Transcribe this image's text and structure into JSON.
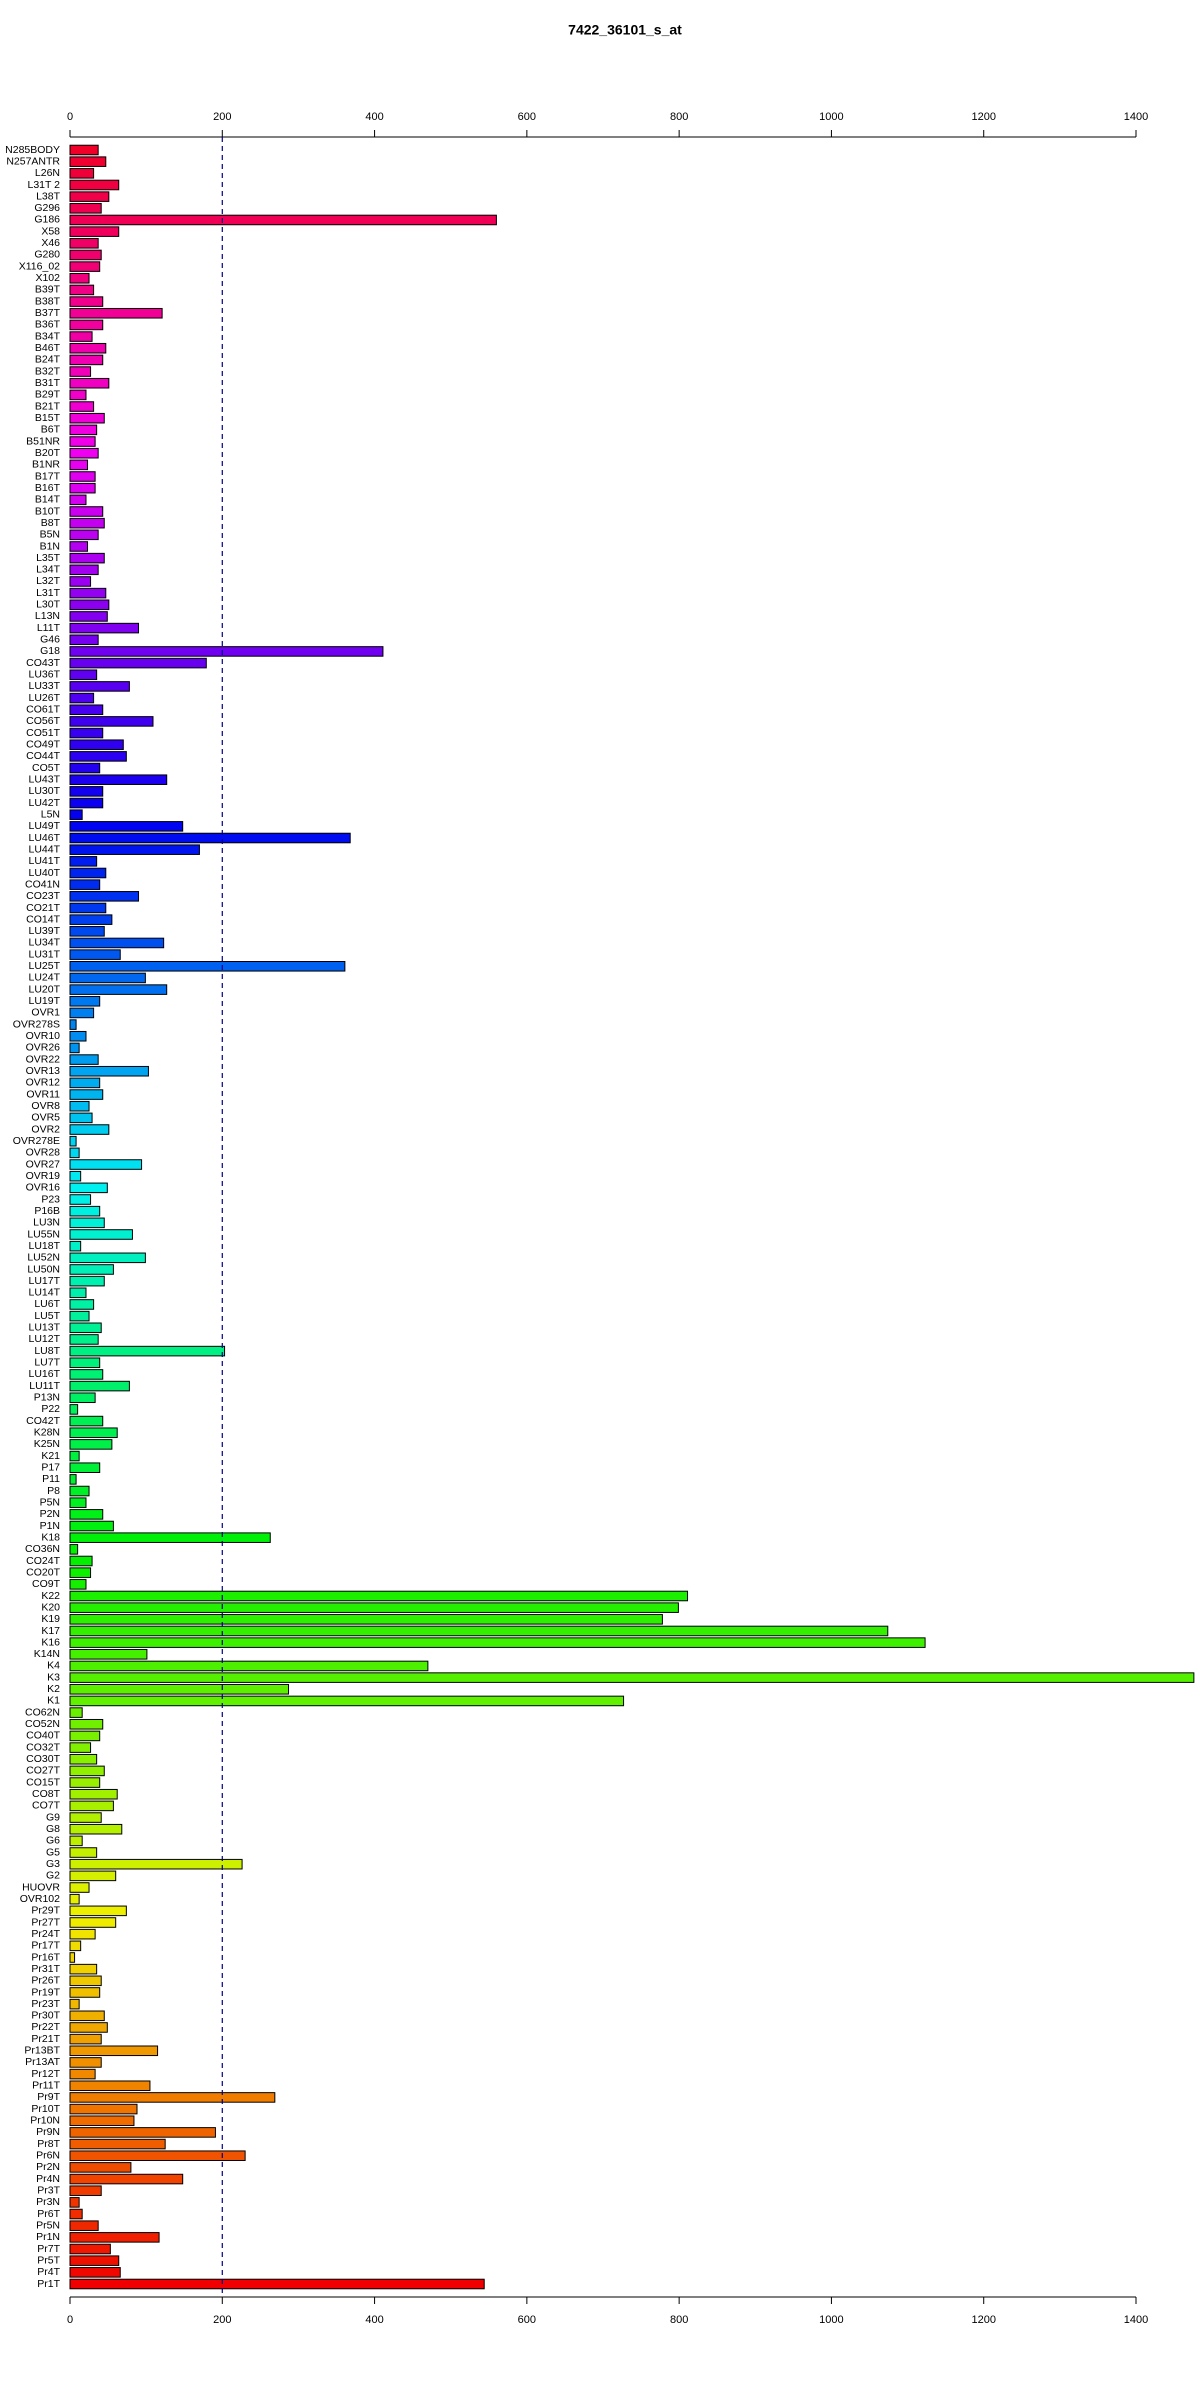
{
  "chart_data": {
    "type": "barh",
    "title": "7422_36101_s_at",
    "categories": [
      "N285BODY",
      "N257ANTR",
      "L26N",
      "L31T 2",
      "L38T",
      "G296",
      "G186",
      "X58",
      "X46",
      "G280",
      "X116_02",
      "X102",
      "B39T",
      "B38T",
      "B37T",
      "B36T",
      "B34T",
      "B46T",
      "B24T",
      "B32T",
      "B31T",
      "B29T",
      "B21T",
      "B15T",
      "B6T",
      "B51NR",
      "B20T",
      "B1NR",
      "B17T",
      "B16T",
      "B14T",
      "B10T",
      "B8T",
      "B5N",
      "B1N",
      "L35T",
      "L34T",
      "L32T",
      "L31T",
      "L30T",
      "L13N",
      "L11T",
      "G46",
      "G18",
      "CO43T",
      "LU36T",
      "LU33T",
      "LU26T",
      "CO61T",
      "CO56T",
      "CO51T",
      "CO49T",
      "CO44T",
      "CO5T",
      "LU43T",
      "LU30T",
      "LU42T",
      "L5N",
      "LU49T",
      "LU46T",
      "LU44T",
      "LU41T",
      "LU40T",
      "CO41N",
      "CO23T",
      "CO21T",
      "CO14T",
      "LU39T",
      "LU34T",
      "LU31T",
      "LU25T",
      "LU24T",
      "LU20T",
      "LU19T",
      "OVR1",
      "OVR278S",
      "OVR10",
      "OVR26",
      "OVR22",
      "OVR13",
      "OVR12",
      "OVR11",
      "OVR8",
      "OVR5",
      "OVR2",
      "OVR278E",
      "OVR28",
      "OVR27",
      "OVR19",
      "OVR16",
      "P23",
      "P16B",
      "LU3N",
      "LU55N",
      "LU18T",
      "LU52N",
      "LU50N",
      "LU17T",
      "LU14T",
      "LU6T",
      "LU5T",
      "LU13T",
      "LU12T",
      "LU8T",
      "LU7T",
      "LU16T",
      "LU11T",
      "P13N",
      "P22",
      "CO42T",
      "K28N",
      "K25N",
      "K21",
      "P17",
      "P11",
      "P8",
      "P5N",
      "P2N",
      "P1N",
      "K18",
      "CO36N",
      "CO24T",
      "CO20T",
      "CO9T",
      "K22",
      "K20",
      "K19",
      "K17",
      "K16",
      "K14N",
      "K4",
      "K3",
      "K2",
      "K1",
      "CO62N",
      "CO52N",
      "CO40T",
      "CO32T",
      "CO30T",
      "CO27T",
      "CO15T",
      "CO8T",
      "CO7T",
      "G9",
      "G8",
      "G6",
      "G5",
      "G3",
      "G2",
      "HUOVR",
      "OVR102",
      "Pr29T",
      "Pr27T",
      "Pr24T",
      "Pr17T",
      "Pr16T",
      "Pr31T",
      "Pr26T",
      "Pr19T",
      "Pr23T",
      "Pr30T",
      "Pr22T",
      "Pr21T",
      "Pr13BT",
      "Pr13AT",
      "Pr12T",
      "Pr11T",
      "Pr9T",
      "Pr10T",
      "Pr10N",
      "Pr9N",
      "Pr8T",
      "Pr6N",
      "Pr2N",
      "Pr4N",
      "Pr3T",
      "Pr3N",
      "Pr6T",
      "Pr5N",
      "Pr1N",
      "Pr7T",
      "Pr5T",
      "Pr4T",
      "Pr1T"
    ],
    "values": [
      37,
      47,
      31,
      64,
      51,
      41,
      560,
      64,
      37,
      41,
      39,
      25,
      31,
      43,
      121,
      43,
      29,
      47,
      43,
      27,
      51,
      21,
      31,
      45,
      35,
      33,
      37,
      23,
      33,
      33,
      21,
      43,
      45,
      37,
      23,
      45,
      37,
      27,
      47,
      51,
      49,
      90,
      37,
      411,
      179,
      35,
      78,
      31,
      43,
      109,
      43,
      70,
      74,
      39,
      127,
      43,
      43,
      16,
      148,
      368,
      170,
      35,
      47,
      39,
      90,
      47,
      55,
      45,
      123,
      66,
      361,
      99,
      127,
      39,
      31,
      8,
      21,
      12,
      37,
      103,
      39,
      43,
      25,
      29,
      51,
      8,
      12,
      94,
      14,
      49,
      27,
      39,
      45,
      82,
      14,
      99,
      57,
      45,
      21,
      31,
      25,
      41,
      37,
      203,
      39,
      43,
      78,
      33,
      10,
      43,
      62,
      55,
      12,
      39,
      8,
      25,
      21,
      43,
      57,
      263,
      10,
      29,
      27,
      21,
      811,
      799,
      778,
      1074,
      1123,
      101,
      470,
      1476,
      287,
      727,
      16,
      43,
      39,
      27,
      35,
      45,
      39,
      62,
      57,
      41,
      68,
      16,
      35,
      226,
      60,
      25,
      12,
      74,
      60,
      33,
      14,
      6,
      35,
      41,
      39,
      12,
      45,
      49,
      41,
      115,
      41,
      33,
      105,
      269,
      88,
      84,
      191,
      125,
      230,
      80,
      148,
      41,
      12,
      16,
      37,
      117,
      53,
      64,
      66,
      544
    ],
    "colors": [
      "hsl(350,100%,47%)",
      "hsl(348,100%,47%)",
      "hsl(346,100%,47%)",
      "hsl(344,100%,47%)",
      "hsl(342,100%,47%)",
      "hsl(340,100%,47%)",
      "hsl(339,100%,47%)",
      "hsl(337,100%,47%)",
      "hsl(335,100%,47%)",
      "hsl(333,100%,47%)",
      "hsl(331,100%,47%)",
      "hsl(329,100%,47%)",
      "hsl(327,100%,47%)",
      "hsl(325,100%,47%)",
      "hsl(323,100%,47%)",
      "hsl(321,100%,47%)",
      "hsl(319,100%,47%)",
      "hsl(317,100%,47%)",
      "hsl(316,100%,47%)",
      "hsl(314,100%,47%)",
      "hsl(312,100%,47%)",
      "hsl(310,100%,47%)",
      "hsl(308,100%,47%)",
      "hsl(306,100%,47%)",
      "hsl(304,100%,47%)",
      "hsl(302,100%,47%)",
      "hsl(300,100%,47%)",
      "hsl(298,100%,47%)",
      "hsl(296,100%,47%)",
      "hsl(295,100%,47%)",
      "hsl(293,100%,47%)",
      "hsl(291,100%,47%)",
      "hsl(289,100%,47%)",
      "hsl(287,100%,47%)",
      "hsl(285,100%,47%)",
      "hsl(283,100%,47%)",
      "hsl(281,100%,47%)",
      "hsl(279,100%,47%)",
      "hsl(277,100%,47%)",
      "hsl(275,100%,47%)",
      "hsl(273,100%,47%)",
      "hsl(272,100%,47%)",
      "hsl(270,100%,47%)",
      "hsl(268,100%,47%)",
      "hsl(266,100%,47%)",
      "hsl(264,100%,47%)",
      "hsl(262,100%,47%)",
      "hsl(260,100%,47%)",
      "hsl(258,100%,47%)",
      "hsl(256,100%,47%)",
      "hsl(254,100%,47%)",
      "hsl(252,100%,47%)",
      "hsl(251,100%,47%)",
      "hsl(249,100%,47%)",
      "hsl(247,100%,47%)",
      "hsl(245,100%,47%)",
      "hsl(243,100%,47%)",
      "hsl(241,100%,47%)",
      "hsl(239,100%,47%)",
      "hsl(237,100%,47%)",
      "hsl(235,100%,47%)",
      "hsl(233,100%,47%)",
      "hsl(231,100%,47%)",
      "hsl(229,100%,47%)",
      "hsl(228,100%,47%)",
      "hsl(226,100%,47%)",
      "hsl(224,100%,47%)",
      "hsl(222,100%,47%)",
      "hsl(220,100%,47%)",
      "hsl(218,100%,47%)",
      "hsl(216,100%,47%)",
      "hsl(214,100%,47%)",
      "hsl(212,100%,47%)",
      "hsl(210,100%,47%)",
      "hsl(208,100%,47%)",
      "hsl(207,100%,47%)",
      "hsl(205,100%,47%)",
      "hsl(203,100%,47%)",
      "hsl(201,100%,47%)",
      "hsl(199,100%,47%)",
      "hsl(197,100%,47%)",
      "hsl(195,100%,47%)",
      "hsl(193,100%,47%)",
      "hsl(191,100%,47%)",
      "hsl(189,100%,47%)",
      "hsl(187,100%,47%)",
      "hsl(186,100%,47%)",
      "hsl(184,100%,47%)",
      "hsl(182,100%,47%)",
      "hsl(180,100%,47%)",
      "hsl(178,100%,47%)",
      "hsl(176,100%,47%)",
      "hsl(174,100%,47%)",
      "hsl(172,100%,47%)",
      "hsl(170,100%,47%)",
      "hsl(168,100%,47%)",
      "hsl(166,100%,47%)",
      "hsl(164,100%,47%)",
      "hsl(163,100%,47%)",
      "hsl(161,100%,47%)",
      "hsl(159,100%,47%)",
      "hsl(157,100%,47%)",
      "hsl(155,100%,47%)",
      "hsl(153,100%,47%)",
      "hsl(151,100%,47%)",
      "hsl(149,100%,47%)",
      "hsl(147,100%,47%)",
      "hsl(145,100%,47%)",
      "hsl(143,100%,47%)",
      "hsl(141,100%,47%)",
      "hsl(140,100%,47%)",
      "hsl(138,100%,47%)",
      "hsl(136,100%,47%)",
      "hsl(134,100%,47%)",
      "hsl(132,100%,47%)",
      "hsl(130,100%,47%)",
      "hsl(128,100%,47%)",
      "hsl(126,100%,47%)",
      "hsl(124,100%,47%)",
      "hsl(122,100%,47%)",
      "hsl(120,100%,47%)",
      "hsl(119,100%,47%)",
      "hsl(117,100%,47%)",
      "hsl(115,100%,47%)",
      "hsl(113,100%,47%)",
      "hsl(111,100%,47%)",
      "hsl(109,100%,47%)",
      "hsl(107,100%,47%)",
      "hsl(105,100%,47%)",
      "hsl(103,100%,47%)",
      "hsl(101,100%,47%)",
      "hsl(99,100%,47%)",
      "hsl(97,100%,47%)",
      "hsl(96,100%,47%)",
      "hsl(94,100%,47%)",
      "hsl(92,100%,47%)",
      "hsl(90,100%,47%)",
      "hsl(88,100%,47%)",
      "hsl(86,100%,47%)",
      "hsl(84,100%,47%)",
      "hsl(82,100%,47%)",
      "hsl(80,100%,47%)",
      "hsl(78,100%,47%)",
      "hsl(76,100%,47%)",
      "hsl(75,100%,47%)",
      "hsl(73,100%,47%)",
      "hsl(71,100%,47%)",
      "hsl(69,100%,47%)",
      "hsl(67,100%,47%)",
      "hsl(65,100%,47%)",
      "hsl(63,100%,47%)",
      "hsl(61,100%,47%)",
      "hsl(59,100%,47%)",
      "hsl(57,100%,47%)",
      "hsl(55,100%,47%)",
      "hsl(53,100%,47%)",
      "hsl(52,100%,47%)",
      "hsl(50,100%,47%)",
      "hsl(48,100%,47%)",
      "hsl(46,100%,47%)",
      "hsl(44,100%,47%)",
      "hsl(42,100%,47%)",
      "hsl(40,100%,47%)",
      "hsl(38,100%,47%)",
      "hsl(36,100%,47%)",
      "hsl(34,100%,47%)",
      "hsl(33,100%,47%)",
      "hsl(31,100%,47%)",
      "hsl(29,100%,47%)",
      "hsl(27,100%,47%)",
      "hsl(25,100%,47%)",
      "hsl(23,100%,47%)",
      "hsl(21,100%,47%)",
      "hsl(19,100%,47%)",
      "hsl(17,100%,47%)",
      "hsl(15,100%,47%)",
      "hsl(13,100%,47%)",
      "hsl(11,100%,47%)",
      "hsl(10,100%,47%)",
      "hsl(8,100%,47%)",
      "hsl(6,100%,47%)",
      "hsl(4,100%,47%)",
      "hsl(2,100%,47%)",
      "hsl(0,100%,47%)"
    ],
    "xlim": [
      0,
      1400
    ],
    "xticks": [
      0,
      200,
      400,
      600,
      800,
      1000,
      1200,
      1400
    ],
    "reference_line": 200,
    "reference_color": "#00008b"
  }
}
